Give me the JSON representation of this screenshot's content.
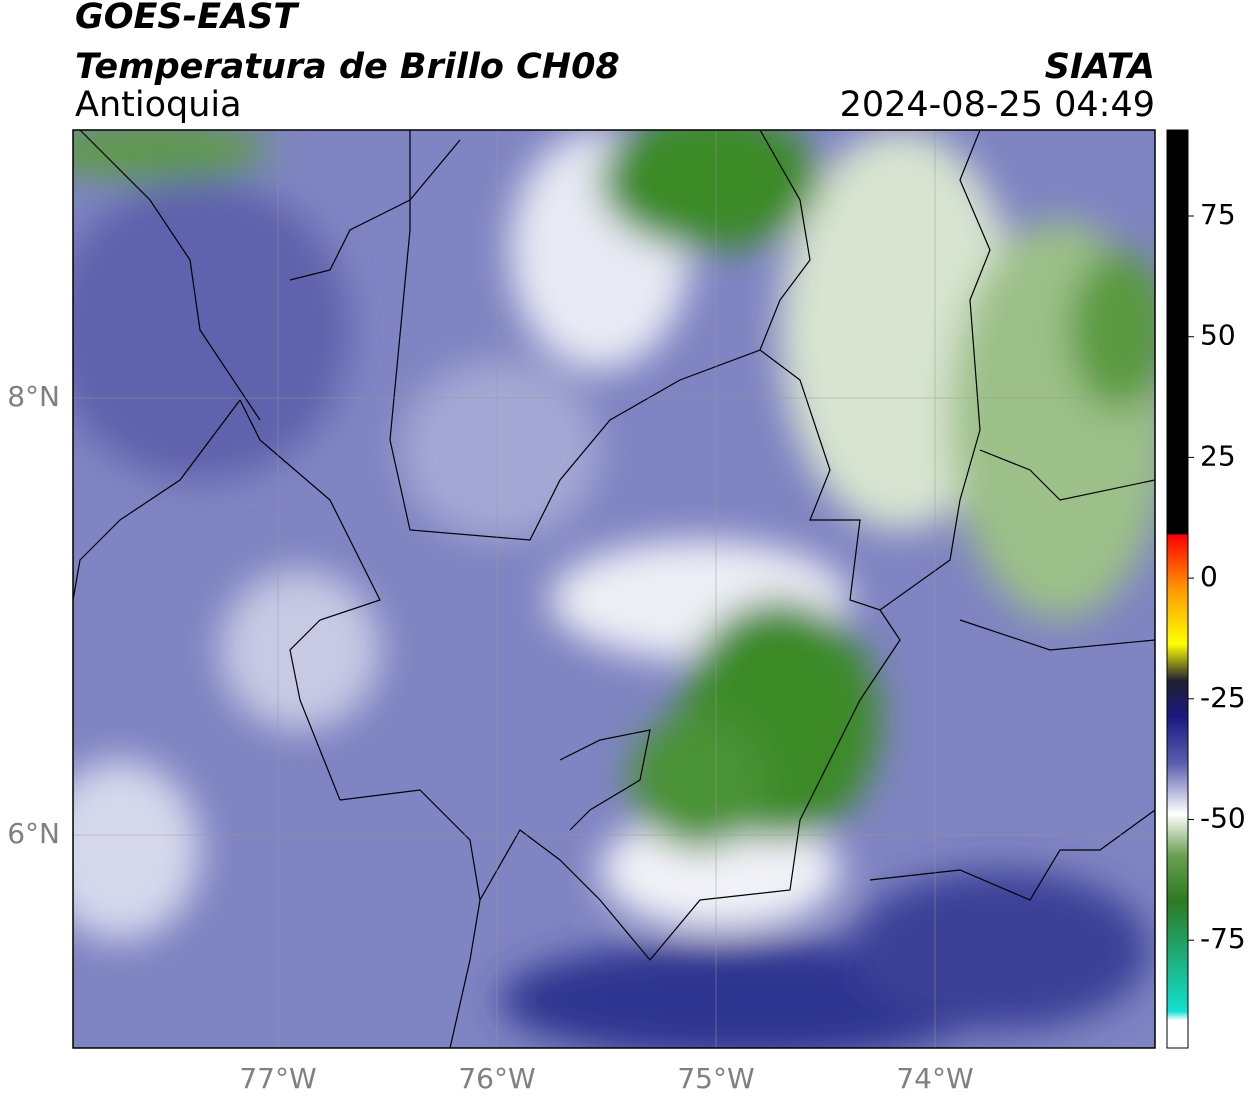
{
  "header": {
    "satellite": "GOES-EAST",
    "product": "Temperatura de Brillo CH08",
    "region": "Antioquia",
    "source": "SIATA",
    "datetime": "2024-08-25 04:49"
  },
  "map": {
    "lon_ticks": [
      "77°W",
      "76°W",
      "75°W",
      "74°W"
    ],
    "lat_ticks": [
      "8°N",
      "6°N"
    ]
  },
  "colorbar": {
    "ticks": [
      75,
      50,
      25,
      0,
      -25,
      -50,
      -75
    ]
  }
}
